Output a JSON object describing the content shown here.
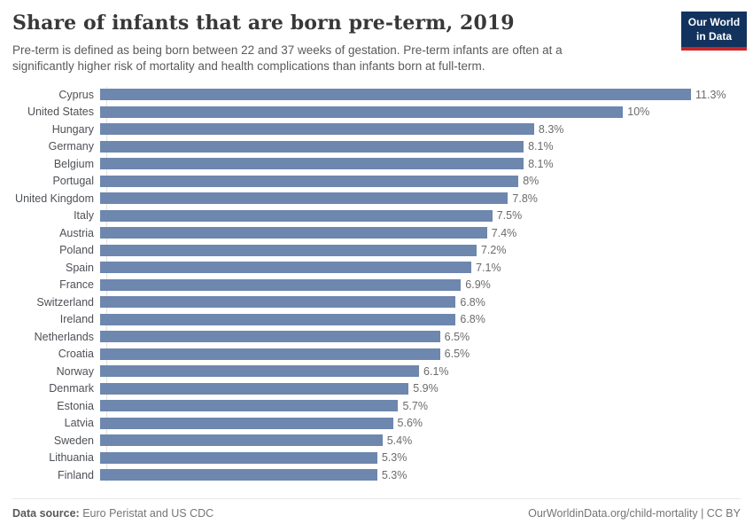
{
  "header": {
    "title": "Share of infants that are born pre-term, 2019",
    "subtitle_line1": "Pre-term is defined as being born between 22 and 37 weeks of gestation. Pre-term infants are often at a",
    "subtitle_line2": "significantly higher risk of mortality and health complications than infants born at full-term.",
    "logo": {
      "line1": "Our World",
      "line2": "in Data",
      "bg_color": "#12335e",
      "accent_color": "#cb2428"
    }
  },
  "chart_data": {
    "type": "bar",
    "orientation": "horizontal",
    "title": "Share of infants that are born pre-term, 2019",
    "xlabel": "",
    "ylabel": "",
    "xlim": [
      0,
      11.3
    ],
    "grid": false,
    "legend": false,
    "bar_color": "#6d87ae",
    "categories": [
      "Cyprus",
      "United States",
      "Hungary",
      "Germany",
      "Belgium",
      "Portugal",
      "United Kingdom",
      "Italy",
      "Austria",
      "Poland",
      "Spain",
      "France",
      "Switzerland",
      "Ireland",
      "Netherlands",
      "Croatia",
      "Norway",
      "Denmark",
      "Estonia",
      "Latvia",
      "Sweden",
      "Lithuania",
      "Finland"
    ],
    "values": [
      11.3,
      10,
      8.3,
      8.1,
      8.1,
      8,
      7.8,
      7.5,
      7.4,
      7.2,
      7.1,
      6.9,
      6.8,
      6.8,
      6.5,
      6.5,
      6.1,
      5.9,
      5.7,
      5.6,
      5.4,
      5.3,
      5.3
    ],
    "value_labels": [
      "11.3%",
      "10%",
      "8.3%",
      "8.1%",
      "8.1%",
      "8%",
      "7.8%",
      "7.5%",
      "7.4%",
      "7.2%",
      "7.1%",
      "6.9%",
      "6.8%",
      "6.8%",
      "6.5%",
      "6.5%",
      "6.1%",
      "5.9%",
      "5.7%",
      "5.6%",
      "5.4%",
      "5.3%",
      "5.3%"
    ]
  },
  "footer": {
    "source_label": "Data source:",
    "source_text": " Euro Peristat and US CDC",
    "credit": "OurWorldinData.org/child-mortality | CC BY"
  }
}
